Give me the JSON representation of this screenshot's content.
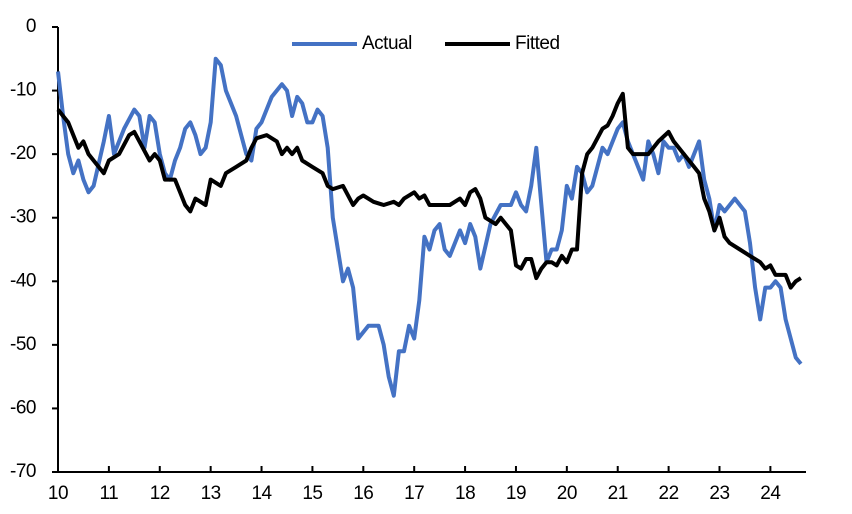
{
  "chart_data": {
    "type": "line",
    "xlim": [
      10,
      24.7
    ],
    "xticks": [
      10,
      11,
      12,
      13,
      14,
      15,
      16,
      17,
      18,
      19,
      20,
      21,
      22,
      23,
      24
    ],
    "ylim": [
      -70,
      0
    ],
    "yticks": [
      0,
      -10,
      -20,
      -30,
      -40,
      -50,
      -60,
      -70
    ],
    "legend": "top",
    "series": [
      {
        "name": "Actual",
        "color": "#4472c4",
        "x": [
          10.0,
          10.1,
          10.2,
          10.3,
          10.4,
          10.5,
          10.6,
          10.7,
          10.9,
          11.0,
          11.1,
          11.3,
          11.5,
          11.6,
          11.7,
          11.8,
          11.9,
          12.0,
          12.1,
          12.2,
          12.3,
          12.4,
          12.5,
          12.6,
          12.7,
          12.8,
          12.9,
          13.0,
          13.1,
          13.2,
          13.3,
          13.5,
          13.6,
          13.7,
          13.8,
          13.9,
          14.0,
          14.2,
          14.4,
          14.5,
          14.6,
          14.7,
          14.8,
          14.9,
          15.0,
          15.1,
          15.2,
          15.3,
          15.4,
          15.5,
          15.6,
          15.7,
          15.8,
          15.9,
          16.0,
          16.1,
          16.3,
          16.4,
          16.5,
          16.6,
          16.7,
          16.8,
          16.9,
          17.0,
          17.1,
          17.2,
          17.3,
          17.4,
          17.5,
          17.6,
          17.7,
          17.8,
          17.9,
          18.0,
          18.1,
          18.2,
          18.3,
          18.5,
          18.7,
          18.9,
          19.0,
          19.1,
          19.2,
          19.3,
          19.4,
          19.5,
          19.6,
          19.7,
          19.8,
          19.9,
          20.0,
          20.1,
          20.2,
          20.3,
          20.4,
          20.5,
          20.6,
          20.7,
          20.8,
          21.0,
          21.1,
          21.2,
          21.3,
          21.4,
          21.5,
          21.6,
          21.7,
          21.8,
          21.9,
          22.0,
          22.1,
          22.2,
          22.3,
          22.4,
          22.6,
          22.7,
          22.8,
          22.9,
          23.0,
          23.1,
          23.2,
          23.3,
          23.5,
          23.6,
          23.7,
          23.8,
          23.9,
          24.0,
          24.1,
          24.2,
          24.3,
          24.4,
          24.5,
          24.6
        ],
        "values": [
          -7,
          -14,
          -20,
          -23,
          -21,
          -24,
          -26,
          -25,
          -18,
          -14,
          -20,
          -16,
          -13,
          -14,
          -19,
          -14,
          -15,
          -20,
          -23,
          -24,
          -21,
          -19,
          -16,
          -15,
          -17,
          -20,
          -19,
          -15,
          -5,
          -6,
          -10,
          -14,
          -17,
          -20,
          -21,
          -16,
          -15,
          -11,
          -9,
          -10,
          -14,
          -11,
          -12,
          -15,
          -15,
          -13,
          -14,
          -19,
          -30,
          -35,
          -40,
          -38,
          -41,
          -49,
          -48,
          -47,
          -47,
          -50,
          -55,
          -58,
          -51,
          -51,
          -47,
          -49,
          -43,
          -33,
          -35,
          -32,
          -31,
          -35,
          -36,
          -34,
          -32,
          -34,
          -31,
          -33,
          -38,
          -31,
          -28,
          -28,
          -26,
          -28,
          -29,
          -25,
          -19,
          -28,
          -37,
          -35,
          -35,
          -32,
          -25,
          -27,
          -22,
          -23,
          -26,
          -25,
          -22,
          -19,
          -20,
          -16,
          -15,
          -18,
          -20,
          -22,
          -24,
          -18,
          -20,
          -23,
          -18,
          -19,
          -19,
          -21,
          -20,
          -22,
          -18,
          -24,
          -27,
          -32,
          -28,
          -29,
          -28,
          -27,
          -29,
          -34,
          -41,
          -46,
          -41,
          -41,
          -40,
          -41,
          -46,
          -49,
          -52,
          -53
        ]
      },
      {
        "name": "Fitted",
        "color": "#000000",
        "x": [
          10.0,
          10.2,
          10.4,
          10.5,
          10.6,
          10.8,
          10.9,
          11.0,
          11.2,
          11.4,
          11.5,
          11.6,
          11.8,
          11.9,
          12.0,
          12.1,
          12.3,
          12.4,
          12.5,
          12.6,
          12.7,
          12.9,
          13.0,
          13.2,
          13.3,
          13.5,
          13.7,
          13.8,
          13.9,
          14.1,
          14.3,
          14.4,
          14.5,
          14.6,
          14.7,
          14.8,
          15.0,
          15.2,
          15.3,
          15.4,
          15.6,
          15.8,
          15.9,
          16.0,
          16.2,
          16.4,
          16.6,
          16.7,
          16.8,
          17.0,
          17.1,
          17.2,
          17.3,
          17.5,
          17.7,
          17.9,
          18.0,
          18.1,
          18.2,
          18.3,
          18.4,
          18.6,
          18.7,
          18.9,
          19.0,
          19.1,
          19.2,
          19.3,
          19.4,
          19.5,
          19.6,
          19.7,
          19.8,
          19.9,
          20.0,
          20.1,
          20.2,
          20.3,
          20.4,
          20.5,
          20.7,
          20.8,
          20.9,
          21.0,
          21.1,
          21.2,
          21.3,
          21.5,
          21.6,
          21.8,
          22.0,
          22.1,
          22.2,
          22.3,
          22.5,
          22.6,
          22.7,
          22.8,
          22.9,
          23.0,
          23.1,
          23.2,
          23.4,
          23.6,
          23.8,
          23.9,
          24.0,
          24.1,
          24.3,
          24.4,
          24.5,
          24.6
        ],
        "values": [
          -13,
          -15,
          -19,
          -18,
          -20,
          -22,
          -23,
          -21,
          -20,
          -17,
          -16.5,
          -18,
          -21,
          -20,
          -21,
          -24,
          -24,
          -26,
          -28,
          -29,
          -27,
          -28,
          -24,
          -25,
          -23,
          -22,
          -21,
          -19,
          -17.5,
          -17,
          -18,
          -20,
          -19,
          -20,
          -19,
          -21,
          -22,
          -23,
          -25,
          -25.5,
          -25,
          -28,
          -27,
          -26.5,
          -27.5,
          -28,
          -27.5,
          -28,
          -27,
          -26,
          -27,
          -26.5,
          -28,
          -28,
          -28,
          -27,
          -28,
          -26,
          -25.5,
          -27,
          -30,
          -31,
          -30,
          -32,
          -37.5,
          -38,
          -36.5,
          -36.5,
          -39.5,
          -38,
          -37,
          -37,
          -37.5,
          -36,
          -37,
          -35,
          -35,
          -23,
          -20,
          -19,
          -16,
          -15.5,
          -14,
          -12,
          -10.5,
          -19,
          -20,
          -20,
          -20,
          -18,
          -16.5,
          -18,
          -19,
          -20,
          -22,
          -23,
          -27,
          -29,
          -32,
          -30,
          -33,
          -34,
          -35,
          -36,
          -37,
          -38,
          -37.5,
          -39,
          -39,
          -41,
          -40,
          -39.5
        ]
      }
    ]
  }
}
